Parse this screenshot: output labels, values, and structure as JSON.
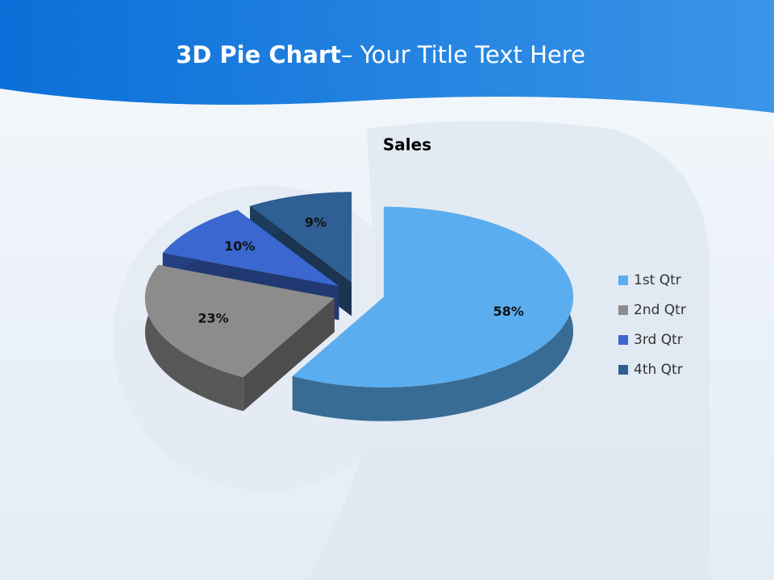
{
  "slide_title": [
    "3D Pie Chart",
    "– Your Title Text Here"
  ],
  "chart_data": {
    "type": "pie3d",
    "title": "Sales",
    "categories": [
      "1st Qtr",
      "2nd Qtr",
      "3rd Qtr",
      "4th Qtr"
    ],
    "values": [
      58,
      23,
      10,
      9
    ],
    "value_labels": [
      "58%",
      "23%",
      "10%",
      "9%"
    ],
    "colors": [
      "#5aaef0",
      "#8c8c8c",
      "#3a67d0",
      "#2f5f94"
    ],
    "legend": "right"
  }
}
